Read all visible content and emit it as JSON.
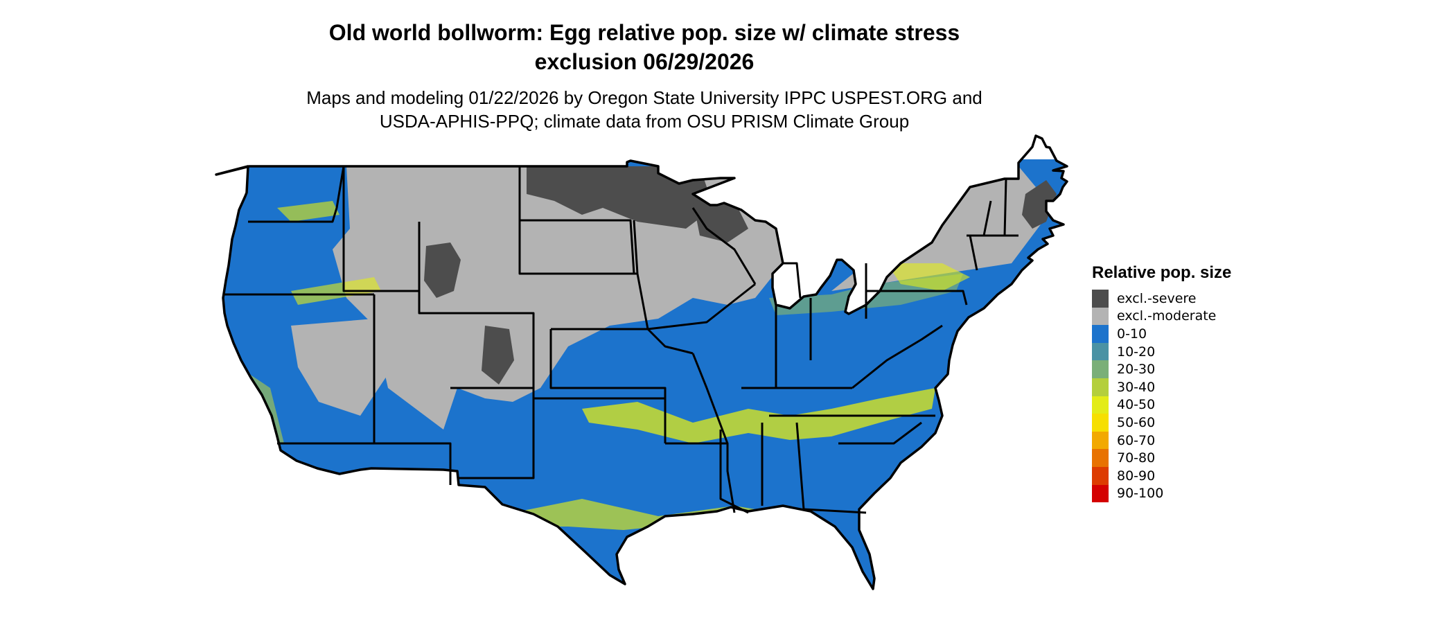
{
  "title_line1": "Old world bollworm: Egg relative pop. size w/ climate stress",
  "title_line2": "exclusion 06/29/2026",
  "subtitle_line1": "Maps and modeling 01/22/2026 by Oregon State University IPPC USPEST.ORG and",
  "subtitle_line2": "USDA-APHIS-PPQ; climate data from OSU PRISM Climate Group",
  "legend": {
    "title": "Relative pop. size",
    "items": [
      {
        "label": "excl.-severe",
        "color": "#4d4d4d"
      },
      {
        "label": "excl.-moderate",
        "color": "#b3b3b3"
      },
      {
        "label": "0-10",
        "color": "#1c73cc"
      },
      {
        "label": "10-20",
        "color": "#4a92a4"
      },
      {
        "label": "20-30",
        "color": "#7aaf78"
      },
      {
        "label": "30-40",
        "color": "#b4cf3c"
      },
      {
        "label": "40-50",
        "color": "#e3ec17"
      },
      {
        "label": "50-60",
        "color": "#f6df00"
      },
      {
        "label": "60-70",
        "color": "#f2a900"
      },
      {
        "label": "70-80",
        "color": "#e87200"
      },
      {
        "label": "80-90",
        "color": "#dd3b00"
      },
      {
        "label": "90-100",
        "color": "#d40000"
      }
    ]
  }
}
